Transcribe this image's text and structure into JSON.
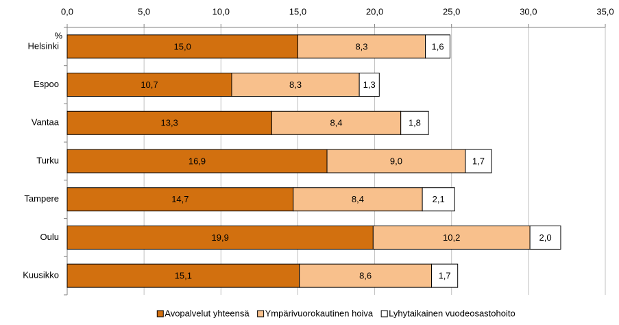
{
  "chart_data": {
    "type": "stacked_barh",
    "unit_label": "%",
    "categories": [
      "Helsinki",
      "Espoo",
      "Vantaa",
      "Turku",
      "Tampere",
      "Oulu",
      "Kuusikko"
    ],
    "series": [
      {
        "name": "Avopalvelut yhteensä",
        "color": "#d2700f",
        "values": [
          15.0,
          10.7,
          13.3,
          16.9,
          14.7,
          19.9,
          15.1
        ],
        "value_labels": [
          "15,0",
          "10,7",
          "13,3",
          "16,9",
          "14,7",
          "19,9",
          "15,1"
        ]
      },
      {
        "name": "Ympärivuorokautinen hoiva",
        "color": "#f8c08c",
        "values": [
          8.3,
          8.3,
          8.4,
          9.0,
          8.4,
          10.2,
          8.6
        ],
        "value_labels": [
          "8,3",
          "8,3",
          "8,4",
          "9,0",
          "8,4",
          "10,2",
          "8,6"
        ]
      },
      {
        "name": "Lyhytaikainen vuodeosastohoito",
        "color": "#ffffff",
        "values": [
          1.6,
          1.3,
          1.8,
          1.7,
          2.1,
          2.0,
          1.7
        ],
        "value_labels": [
          "1,6",
          "1,3",
          "1,8",
          "1,7",
          "2,1",
          "2,0",
          "1,7"
        ]
      }
    ],
    "xlim": [
      0,
      35
    ],
    "xticks": [
      {
        "value": 0,
        "label": "0,0"
      },
      {
        "value": 5,
        "label": "5,0"
      },
      {
        "value": 10,
        "label": "10,0"
      },
      {
        "value": 15,
        "label": "15,0"
      },
      {
        "value": 20,
        "label": "20,0"
      },
      {
        "value": 25,
        "label": "25,0"
      },
      {
        "value": 30,
        "label": "30,0"
      },
      {
        "value": 35,
        "label": "35,0"
      }
    ],
    "grid": true,
    "legend": "bottom"
  }
}
